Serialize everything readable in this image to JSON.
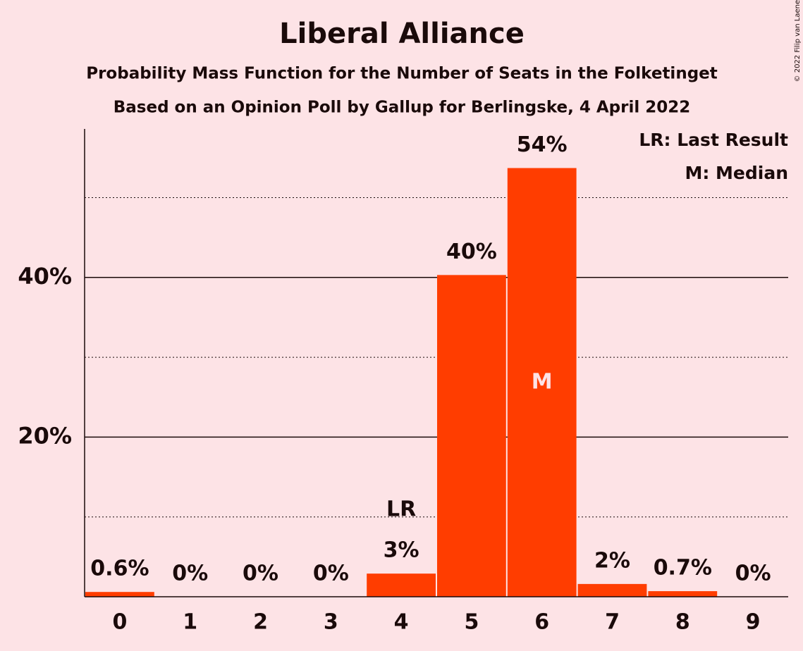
{
  "chart_data": {
    "type": "bar",
    "title": "Liberal Alliance",
    "subtitle": "Probability Mass Function for the Number of Seats in the Folketinget",
    "subtitle2": "Based on an Opinion Poll by Gallup for Berlingske, 4 April 2022",
    "credit": "© 2022 Filip van Laenen",
    "categories": [
      "0",
      "1",
      "2",
      "3",
      "4",
      "5",
      "6",
      "7",
      "8",
      "9"
    ],
    "values": [
      0.6,
      0,
      0,
      0,
      2.9,
      40.3,
      53.7,
      1.6,
      0.7,
      0
    ],
    "value_labels": [
      "0.6%",
      "0%",
      "0%",
      "0%",
      "3%",
      "40%",
      "54%",
      "2%",
      "0.7%",
      "0%"
    ],
    "color": "#ff3d00",
    "ylim": [
      0,
      58.6
    ],
    "yticks": [
      {
        "value": 20,
        "label": "20%"
      },
      {
        "value": 40,
        "label": "40%"
      }
    ],
    "minor_gridlines": [
      10,
      30,
      50
    ],
    "grid": true,
    "annotations": [
      {
        "text": "LR",
        "category": "4",
        "position": "above"
      },
      {
        "text": "M",
        "category": "6",
        "position": "inside"
      }
    ],
    "legend": [
      "LR: Last Result",
      "M: Median"
    ]
  }
}
